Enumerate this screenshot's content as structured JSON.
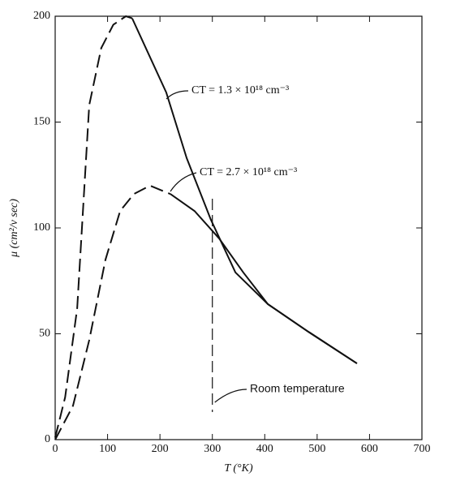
{
  "chart_data": {
    "type": "line",
    "xlabel": "T (°K)",
    "ylabel": "μ (cm²/v sec)",
    "xlim": [
      0,
      700
    ],
    "xticks": [
      0,
      100,
      200,
      300,
      400,
      500,
      600,
      700
    ],
    "ylim": [
      0,
      200
    ],
    "yticks": [
      0,
      50,
      100,
      150,
      200
    ],
    "color": "#111111",
    "series": [
      {
        "name": "CT = 1.3 × 10¹⁸ cm⁻³",
        "x": [
          0,
          19,
          42,
          65,
          88,
          111,
          135,
          147,
          173,
          212,
          251,
          297,
          344,
          406,
          483,
          576
        ],
        "values": [
          1,
          20,
          62,
          158,
          185,
          196,
          200,
          199,
          185,
          164,
          133,
          104,
          79,
          64,
          51,
          36
        ]
      },
      {
        "name": "CT = 2.7 × 10¹⁸ cm⁻³",
        "x": [
          0,
          34,
          65,
          96,
          124,
          150,
          181,
          220,
          266,
          313,
          359,
          406,
          483,
          576
        ],
        "values": [
          0,
          16,
          47,
          85,
          108,
          116,
          120,
          116,
          108,
          95,
          79,
          64,
          51,
          36
        ]
      }
    ],
    "annotation": {
      "text": "Room temperature",
      "x": 300
    }
  }
}
